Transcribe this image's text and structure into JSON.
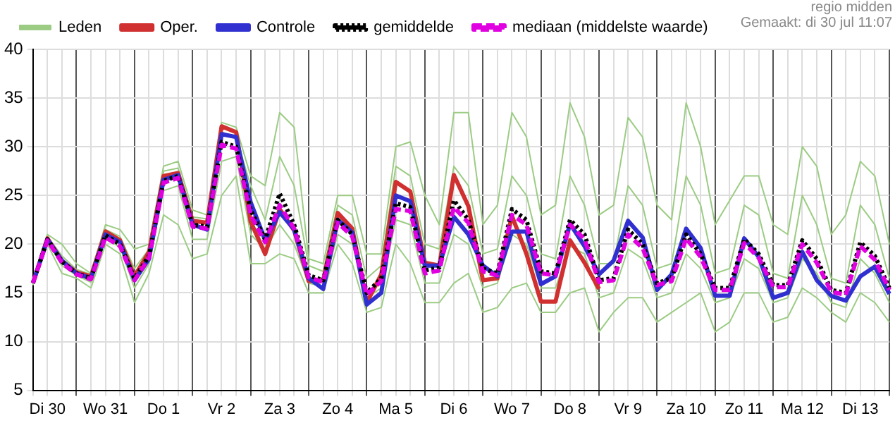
{
  "chart_data": {
    "type": "line",
    "annotations": [
      "regio midden",
      "Gemaakt: di 30 jul 11:07"
    ],
    "categories": [
      null,
      "Di 30",
      null,
      null,
      null,
      "Wo 31",
      null,
      null,
      null,
      "Do 1",
      null,
      null,
      null,
      "Vr 2",
      null,
      null,
      null,
      "Za 3",
      null,
      null,
      null,
      "Zo 4",
      null,
      null,
      null,
      "Ma 5",
      null,
      null,
      null,
      "Di 6",
      null,
      null,
      null,
      "Wo 7",
      null,
      null,
      null,
      "Do 8",
      null,
      null,
      null,
      "Vr 9",
      null,
      null,
      null,
      "Za 10",
      null,
      null,
      null,
      "Zo 11",
      null,
      null,
      null,
      "Ma 12",
      null,
      null,
      null,
      "Di 13",
      null,
      null
    ],
    "ylim": [
      5,
      40
    ],
    "yticks": [
      5,
      10,
      15,
      20,
      25,
      30,
      35,
      40
    ],
    "grid": true,
    "legend": "top left",
    "marker": "none",
    "series": [
      {
        "name": "Leden",
        "color": "#9ccc84",
        "values": [
          16.3,
          21,
          20,
          18,
          17,
          22,
          21.5,
          19.5,
          20,
          28,
          28.5,
          23.5,
          23,
          32.5,
          32,
          27,
          26,
          33.5,
          32,
          18.5,
          18,
          25,
          25,
          19,
          19,
          30,
          30.5,
          25,
          22,
          33.5,
          33.5,
          22,
          24,
          33.5,
          31,
          23,
          24,
          34.5,
          31,
          23,
          24,
          33,
          31,
          24,
          22.5,
          34.5,
          30,
          22,
          24.5,
          27,
          27,
          22,
          21,
          30,
          28,
          21,
          23,
          28.5,
          27,
          20
        ]
      },
      {
        "color": "#9ccc84",
        "values": [
          15.8,
          20,
          17,
          16.5,
          15.5,
          20,
          19,
          14,
          17,
          23,
          22,
          18.5,
          19,
          25,
          27,
          18,
          18,
          19,
          18.5,
          15,
          15,
          20,
          18,
          13,
          13.5,
          20,
          18,
          14,
          14,
          16,
          17,
          13,
          13.5,
          15.5,
          16,
          13,
          13,
          15,
          15.5,
          11,
          13,
          14.5,
          14.5,
          12,
          13,
          14,
          15,
          11,
          12,
          15,
          15,
          12,
          12.5,
          15.5,
          14.5,
          13,
          12,
          15,
          14,
          12
        ]
      },
      {
        "color": "#9ccc84",
        "values": [
          16.1,
          20.8,
          18.8,
          17.4,
          16.9,
          21.5,
          20.8,
          17.5,
          19.5,
          27.5,
          27.8,
          22.8,
          22.6,
          31.5,
          31,
          26,
          22.5,
          29,
          26,
          17.8,
          17.2,
          24,
          23,
          16.5,
          17.8,
          28,
          27,
          20,
          19.5,
          28,
          26,
          19,
          19.5,
          27,
          25,
          19,
          18.5,
          27,
          24,
          18,
          18,
          26,
          24,
          17.5,
          18,
          27,
          24,
          17,
          17.5,
          24,
          23,
          17,
          16.5,
          25,
          22,
          16.5,
          16,
          24,
          22,
          16.5
        ]
      },
      {
        "color": "#9ccc84",
        "values": [
          15.9,
          20.3,
          17.8,
          16.8,
          16.1,
          20.5,
          19.7,
          15.5,
          18,
          25.5,
          26,
          20.5,
          20.5,
          28.5,
          29,
          21,
          19.5,
          22,
          20,
          16,
          15.6,
          21,
          20,
          14.5,
          15.5,
          22.5,
          22,
          16,
          16,
          21,
          20,
          15.5,
          16,
          21,
          20,
          15.5,
          15.5,
          19.8,
          19,
          14.5,
          15,
          19.5,
          18.5,
          14.5,
          15,
          19,
          17.5,
          14,
          14.5,
          18.5,
          17.5,
          14.0,
          14.5,
          18.5,
          17,
          14,
          13.5,
          18.5,
          17,
          14
        ]
      },
      {
        "name": "Oper.",
        "color": "#d03030",
        "values": [
          16.0,
          20.6,
          18.3,
          17.1,
          16.7,
          21.3,
          20.4,
          16.7,
          19.2,
          27.0,
          27.3,
          22.4,
          22.2,
          32.1,
          31.5,
          22.3,
          19.0,
          23.6,
          21.4,
          16.2,
          16.3,
          23.2,
          21.6,
          14.0,
          16.9,
          26.4,
          25.4,
          18.1,
          17.8,
          27.1,
          23.9,
          16.3,
          16.5,
          22.9,
          19.0,
          14.1,
          14.1,
          20.4,
          18.1,
          15.4,
          null,
          null,
          null,
          null,
          null,
          null,
          null,
          null,
          null,
          null,
          null,
          null,
          null,
          null,
          null,
          null,
          null,
          null,
          null,
          null
        ]
      },
      {
        "name": "Controle",
        "color": "#3030d0",
        "values": [
          16.0,
          20.5,
          18.3,
          17.0,
          16.5,
          21.0,
          20.2,
          16.3,
          18.5,
          26.6,
          27.1,
          22.0,
          21.5,
          31.3,
          31.0,
          24.3,
          20.4,
          23.3,
          21.5,
          16.5,
          15.4,
          22.5,
          21.2,
          13.8,
          15.0,
          25.0,
          24.4,
          17.8,
          17.8,
          22.8,
          21.0,
          17.8,
          16.7,
          21.3,
          21.3,
          15.9,
          16.7,
          22.1,
          19.8,
          16.9,
          18.3,
          22.4,
          20.7,
          15.3,
          16.9,
          21.6,
          19.6,
          14.7,
          14.7,
          20.6,
          18.7,
          14.5,
          15.0,
          19.2,
          16.3,
          14.7,
          14.2,
          16.7,
          17.7,
          14.9
        ]
      },
      {
        "name": "gemiddelde",
        "color": "#000000",
        "line_style": "dotted",
        "values": [
          16.0,
          20.5,
          18.2,
          17.0,
          16.5,
          20.9,
          20.0,
          16.5,
          18.8,
          26.5,
          27.0,
          22.0,
          21.8,
          30.5,
          30.0,
          23.5,
          20.5,
          25.2,
          22.0,
          16.8,
          16.3,
          22.5,
          21.0,
          15.0,
          16.5,
          24.2,
          23.8,
          17.3,
          17.6,
          24.5,
          22.5,
          17.5,
          17.0,
          23.6,
          22.5,
          17.2,
          17.0,
          22.5,
          21.0,
          16.3,
          16.5,
          21.5,
          20.0,
          16.0,
          16.5,
          21.0,
          19.0,
          15.5,
          15.5,
          20.5,
          19.0,
          15.8,
          15.8,
          20.4,
          18.5,
          15.3,
          15.0,
          20.2,
          18.8,
          15.5
        ]
      },
      {
        "name": "mediaan (middelste waarde)",
        "color": "#e000e0",
        "line_style": "dashed",
        "values": [
          16.0,
          20.4,
          18.1,
          16.9,
          16.4,
          20.7,
          19.8,
          16.3,
          18.6,
          26.3,
          26.8,
          21.8,
          21.6,
          30.2,
          29.8,
          23.0,
          20.2,
          24.0,
          21.6,
          16.6,
          16.1,
          22.2,
          20.8,
          14.8,
          16.2,
          23.6,
          23.4,
          17.0,
          17.3,
          23.8,
          22.2,
          17.2,
          16.8,
          23.0,
          22.0,
          17.0,
          16.8,
          22.0,
          20.5,
          16.1,
          16.3,
          21.0,
          19.6,
          15.8,
          16.2,
          20.6,
          18.7,
          15.3,
          15.3,
          20.1,
          18.6,
          15.6,
          15.6,
          20.0,
          18.1,
          15.1,
          14.8,
          19.8,
          18.4,
          15.3
        ]
      }
    ]
  }
}
